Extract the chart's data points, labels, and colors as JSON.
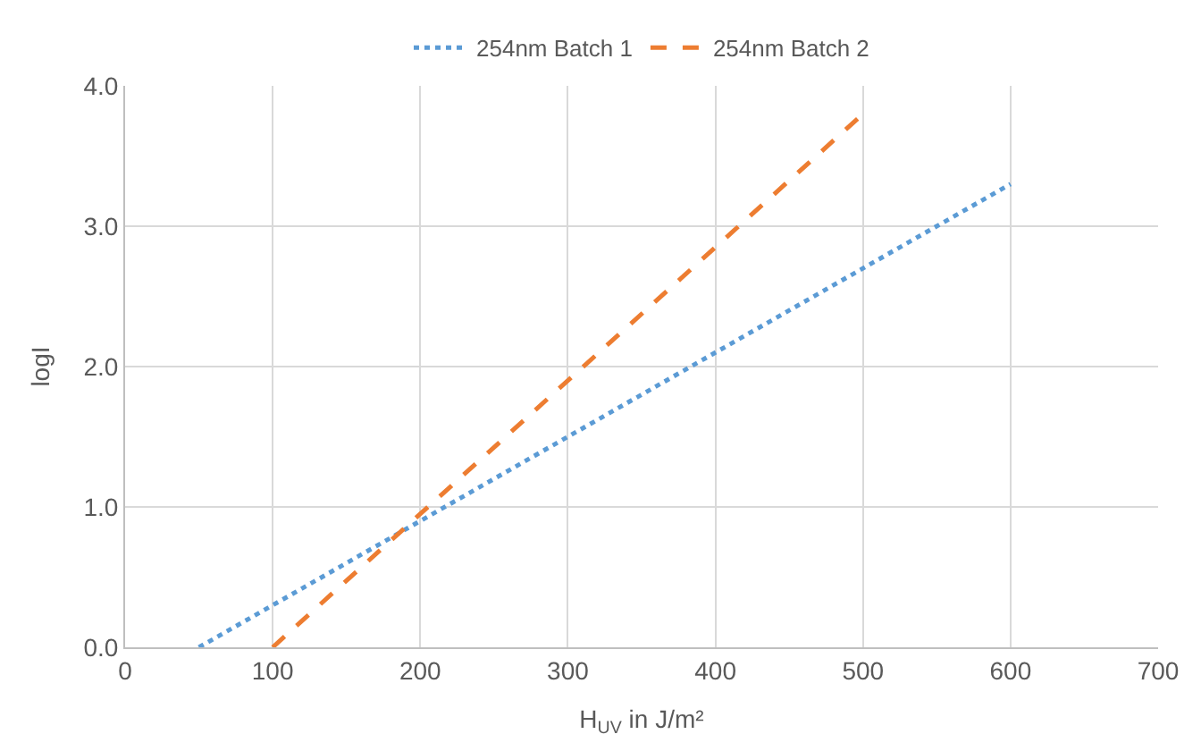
{
  "chart_data": {
    "type": "line",
    "xlabel": "H$_{UV}$ in J/m²",
    "ylabel": "logI",
    "series": [
      {
        "name": "254nm Batch 1",
        "color": "#5b9bd5",
        "x": [
          50,
          600
        ],
        "values": [
          0,
          3.3
        ],
        "line_style": "dotted"
      },
      {
        "name": "254nm Batch 2",
        "color": "#ed7d31",
        "x": [
          100,
          500
        ],
        "values": [
          0,
          3.8
        ],
        "line_style": "dashed"
      }
    ],
    "xlim": [
      0,
      700
    ],
    "xticks": [
      0,
      100,
      200,
      300,
      400,
      500,
      600,
      700
    ],
    "ylim": [
      0,
      4
    ],
    "yticks": [
      {
        "value": 0,
        "label": "0.0"
      },
      {
        "value": 1,
        "label": "1.0"
      },
      {
        "value": 2,
        "label": "2.0"
      },
      {
        "value": 3,
        "label": "3.0"
      },
      {
        "value": 4,
        "label": "4.0"
      }
    ],
    "grid": true,
    "legend": "top",
    "marker": "none"
  }
}
